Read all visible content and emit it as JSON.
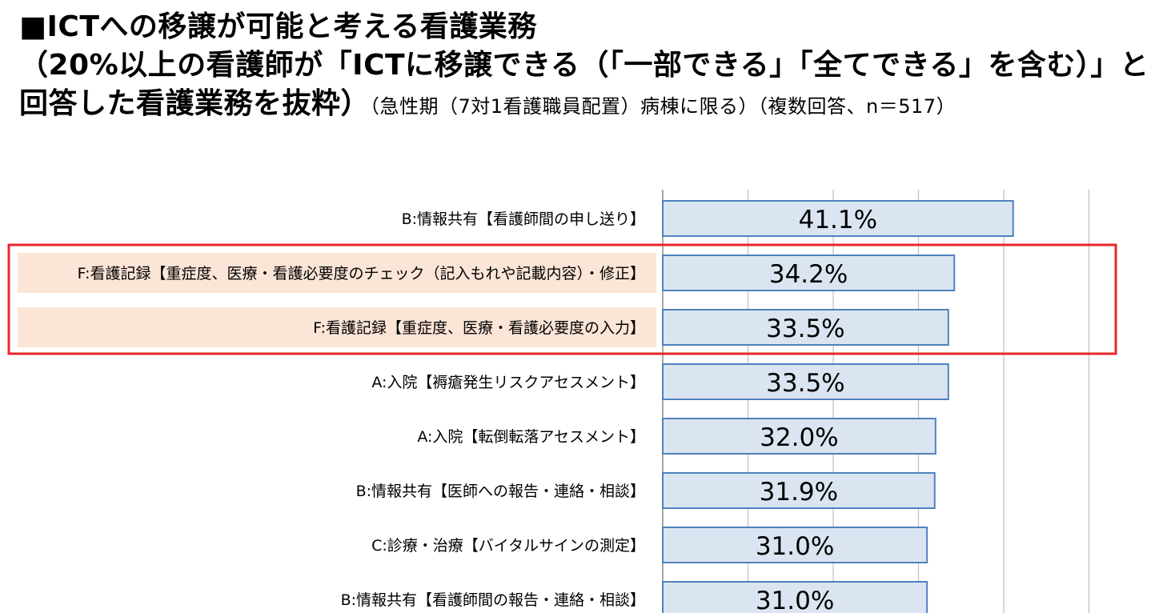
{
  "title": {
    "line1": "■ICTへの移譲が可能と考える看護業務",
    "line2": "（20%以上の看護師が「ICTに移譲できる（「一部できる」「全てできる」を含む）」と",
    "line3_bold": "回答した看護業務を抜粋）",
    "line3_note": "（急性期（7対1看護職員配置）病棟に限る）（複数回答、n＝517）"
  },
  "chart_data": {
    "type": "bar",
    "orientation": "horizontal",
    "categories": [
      "B:情報共有【看護師間の申し送り】",
      "F:看護記録【重症度、医療・看護必要度のチェック（記入もれや記載内容）・修正】",
      "F:看護記録【重症度、医療・看護必要度の入力】",
      "A:入院【褥瘡発生リスクアセスメント】",
      "A:入院【転倒転落アセスメント】",
      "B:情報共有【医師への報告・連絡・相談】",
      "C:診療・治療【バイタルサインの測定】",
      "B:情報共有【看護師間の報告・連絡・相談】"
    ],
    "values": [
      41.1,
      34.2,
      33.5,
      33.5,
      32.0,
      31.9,
      31.0,
      31.0
    ],
    "data_labels": [
      "41.1%",
      "34.2%",
      "33.5%",
      "33.5%",
      "32.0%",
      "31.9%",
      "31.0%",
      "31.0%"
    ],
    "highlighted": [
      false,
      true,
      true,
      false,
      false,
      false,
      false,
      false
    ],
    "xlim": [
      0,
      50
    ],
    "grid": true,
    "colors": {
      "bar_fill": "#dbe5f1",
      "bar_stroke": "#4f81bd",
      "grid": "#bfbfbf",
      "highlight_box": "#e8262b",
      "highlight_label_bg": "#fbe5d6"
    }
  }
}
